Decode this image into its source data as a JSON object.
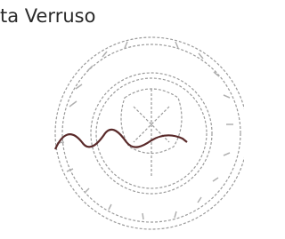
{
  "document": {
    "text": "ta Verruso"
  }
}
